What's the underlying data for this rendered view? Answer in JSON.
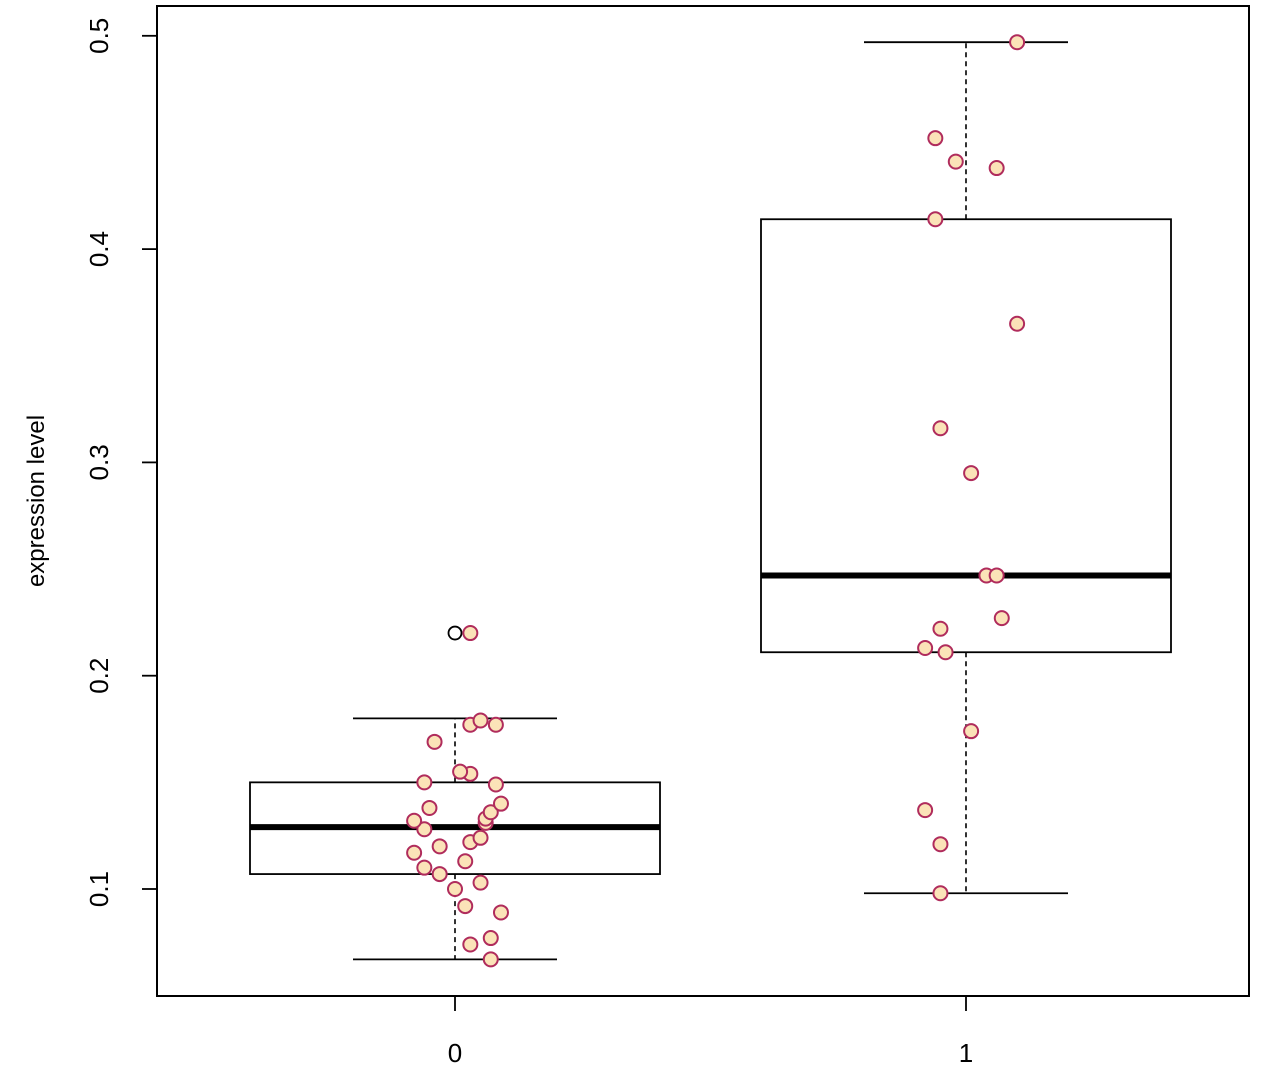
{
  "chart_data": {
    "type": "boxplot",
    "title": "",
    "xlabel": "",
    "ylabel": "expression level",
    "categories": [
      "0",
      "1"
    ],
    "ylim": [
      0.05,
      0.5
    ],
    "y_ticks": [
      "0.1",
      "0.2",
      "0.3",
      "0.4",
      "0.5"
    ],
    "grid": false,
    "boxes": [
      {
        "category": "0",
        "whisker_low": 0.067,
        "q1": 0.107,
        "median": 0.129,
        "q3": 0.15,
        "whisker_high": 0.18,
        "outliers": [
          0.22
        ]
      },
      {
        "category": "1",
        "whisker_low": 0.098,
        "q1": 0.211,
        "median": 0.247,
        "q3": 0.414,
        "whisker_high": 0.497,
        "outliers": []
      }
    ],
    "points": [
      {
        "group": 0,
        "x": 0.07,
        "y": 0.067
      },
      {
        "group": 0,
        "x": 0.03,
        "y": 0.074
      },
      {
        "group": 0,
        "x": 0.07,
        "y": 0.077
      },
      {
        "group": 0,
        "x": 0.09,
        "y": 0.089
      },
      {
        "group": 0,
        "x": 0.02,
        "y": 0.092
      },
      {
        "group": 0,
        "x": 0.0,
        "y": 0.1
      },
      {
        "group": 0,
        "x": 0.05,
        "y": 0.103
      },
      {
        "group": 0,
        "x": -0.03,
        "y": 0.107
      },
      {
        "group": 0,
        "x": -0.06,
        "y": 0.11
      },
      {
        "group": 0,
        "x": 0.02,
        "y": 0.113
      },
      {
        "group": 0,
        "x": -0.08,
        "y": 0.117
      },
      {
        "group": 0,
        "x": -0.03,
        "y": 0.12
      },
      {
        "group": 0,
        "x": 0.03,
        "y": 0.122
      },
      {
        "group": 0,
        "x": 0.05,
        "y": 0.124
      },
      {
        "group": 0,
        "x": -0.06,
        "y": 0.128
      },
      {
        "group": 0,
        "x": 0.06,
        "y": 0.131
      },
      {
        "group": 0,
        "x": -0.08,
        "y": 0.132
      },
      {
        "group": 0,
        "x": 0.06,
        "y": 0.133
      },
      {
        "group": 0,
        "x": 0.07,
        "y": 0.136
      },
      {
        "group": 0,
        "x": -0.05,
        "y": 0.138
      },
      {
        "group": 0,
        "x": 0.09,
        "y": 0.14
      },
      {
        "group": 0,
        "x": -0.06,
        "y": 0.15
      },
      {
        "group": 0,
        "x": 0.08,
        "y": 0.149
      },
      {
        "group": 0,
        "x": 0.03,
        "y": 0.154
      },
      {
        "group": 0,
        "x": 0.01,
        "y": 0.155
      },
      {
        "group": 0,
        "x": -0.04,
        "y": 0.169
      },
      {
        "group": 0,
        "x": 0.03,
        "y": 0.177
      },
      {
        "group": 0,
        "x": 0.08,
        "y": 0.177
      },
      {
        "group": 0,
        "x": 0.05,
        "y": 0.179
      },
      {
        "group": 0,
        "x": 0.03,
        "y": 0.22
      },
      {
        "group": 1,
        "x": 0.95,
        "y": 0.098
      },
      {
        "group": 1,
        "x": 0.95,
        "y": 0.121
      },
      {
        "group": 1,
        "x": 0.92,
        "y": 0.137
      },
      {
        "group": 1,
        "x": 1.01,
        "y": 0.174
      },
      {
        "group": 1,
        "x": 0.96,
        "y": 0.211
      },
      {
        "group": 1,
        "x": 0.92,
        "y": 0.213
      },
      {
        "group": 1,
        "x": 0.95,
        "y": 0.222
      },
      {
        "group": 1,
        "x": 1.07,
        "y": 0.227
      },
      {
        "group": 1,
        "x": 1.04,
        "y": 0.247
      },
      {
        "group": 1,
        "x": 1.06,
        "y": 0.247
      },
      {
        "group": 1,
        "x": 1.01,
        "y": 0.295
      },
      {
        "group": 1,
        "x": 0.95,
        "y": 0.316
      },
      {
        "group": 1,
        "x": 1.1,
        "y": 0.365
      },
      {
        "group": 1,
        "x": 0.94,
        "y": 0.414
      },
      {
        "group": 1,
        "x": 1.06,
        "y": 0.438
      },
      {
        "group": 1,
        "x": 0.98,
        "y": 0.441
      },
      {
        "group": 1,
        "x": 0.94,
        "y": 0.452
      },
      {
        "group": 1,
        "x": 1.1,
        "y": 0.497
      }
    ],
    "colors": {
      "point_fill": "#fbe3b8",
      "point_stroke": "#b02c5c",
      "box_stroke": "#000000",
      "outlier_stroke": "#000000"
    }
  }
}
